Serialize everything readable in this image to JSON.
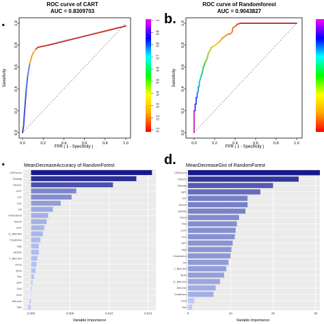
{
  "panels": [
    {
      "id": "a",
      "letter": ".",
      "title": "ROC curve of CART",
      "subtitle": "AUC = 0.8309703",
      "xlabel": "FPR ( 1 - Specificity )",
      "ylabel": "Sensitivity",
      "xticks": [
        "0.0",
        "0.2",
        "0.4",
        "0.6",
        "0.8",
        "1.0"
      ],
      "yticks": [
        "0.0",
        "0.2",
        "0.4",
        "0.6",
        "0.8",
        "1.0"
      ],
      "colorbar_ticks": [
        "0.1",
        "0.2",
        "0.3",
        "0.4",
        "0.5",
        "0.6",
        "0.7",
        "0.8",
        "0.9",
        "1"
      ]
    },
    {
      "id": "b",
      "letter": "b.",
      "title": "ROC curve of Randomforest",
      "subtitle": "AUC = 0.9043827",
      "xlabel": "FPR ( 1 - Specificity )",
      "ylabel": "Sensitivity",
      "xticks": [
        "0.0",
        "0.2",
        "0.4",
        "0.6",
        "0.8",
        "1.0"
      ],
      "yticks": [
        "0.0",
        "0.2",
        "0.4",
        "0.6",
        "0.8",
        "1.0"
      ],
      "colorbar_ticks": []
    },
    {
      "id": "c",
      "letter": ".",
      "title": "MeanDecreaseAccuracy of RandomForest",
      "xlabel": "Variable Importance",
      "xticks": [
        "0.000",
        "0.005",
        "0.010",
        "0.015"
      ]
    },
    {
      "id": "d",
      "letter": "d.",
      "title": "MeanDecreaseGini of RandomForest",
      "xlabel": "Variable Importance",
      "xticks": [
        "0",
        "10",
        "20",
        "30"
      ]
    }
  ],
  "chart_data": [
    {
      "type": "line",
      "title": "ROC curve of CART",
      "subtitle": "AUC = 0.8309703",
      "xlabel": "FPR ( 1 - Specificity )",
      "ylabel": "Sensitivity",
      "xlim": [
        0,
        1
      ],
      "ylim": [
        0,
        1
      ],
      "x": [
        0,
        0.01,
        0.02,
        0.035,
        0.05,
        0.07,
        0.09,
        0.11,
        0.13,
        0.15,
        0.25,
        0.4,
        0.55,
        0.7,
        0.85,
        1.0
      ],
      "y": [
        0,
        0.06,
        0.2,
        0.38,
        0.52,
        0.63,
        0.7,
        0.74,
        0.765,
        0.78,
        0.8,
        0.835,
        0.87,
        0.905,
        0.94,
        0.975
      ],
      "colors": [
        "#3344cc",
        "#3355dd",
        "#3b59d6",
        "#4a6fe0",
        "#5a86e8",
        "#f0a030",
        "#f2a030",
        "#e8c040",
        "#c8503a",
        "#c83a30",
        "#c23a30",
        "#c03a30",
        "#c03a30",
        "#c03a30",
        "#c03a30",
        "#c03a30"
      ],
      "diagonal_reference": true,
      "colorbar_ticks": [
        "0.1",
        "0.2",
        "0.3",
        "0.4",
        "0.5",
        "0.6",
        "0.7",
        "0.8",
        "0.9",
        "1"
      ]
    },
    {
      "type": "line",
      "title": "ROC curve of Randomforest",
      "subtitle": "AUC = 0.9043827",
      "xlabel": "FPR ( 1 - Specificity )",
      "ylabel": "Sensitivity",
      "xlim": [
        0,
        1
      ],
      "ylim": [
        0,
        1
      ],
      "x": [
        0,
        0.0,
        0.01,
        0.01,
        0.02,
        0.02,
        0.03,
        0.03,
        0.04,
        0.04,
        0.05,
        0.05,
        0.06,
        0.07,
        0.08,
        0.09,
        0.1,
        0.11,
        0.12,
        0.13,
        0.14,
        0.15,
        0.17,
        0.19,
        0.21,
        0.23,
        0.25,
        0.27,
        0.3,
        0.33,
        0.35,
        0.37,
        0.38,
        0.4,
        0.42,
        0.45,
        1.0
      ],
      "y": [
        0,
        0.2,
        0.2,
        0.26,
        0.26,
        0.32,
        0.32,
        0.36,
        0.38,
        0.42,
        0.42,
        0.46,
        0.49,
        0.52,
        0.55,
        0.6,
        0.62,
        0.65,
        0.66,
        0.69,
        0.73,
        0.74,
        0.78,
        0.79,
        0.8,
        0.82,
        0.83,
        0.86,
        0.88,
        0.9,
        0.9,
        0.92,
        0.96,
        0.97,
        0.99,
        1.0,
        1.0
      ],
      "colors": [
        "#cc33cc",
        "#9933cc",
        "#6633dd",
        "#4444ee",
        "#3355ee",
        "#3366ee",
        "#3377ee",
        "#2288ee",
        "#2299dd",
        "#22aadd",
        "#22bbcc",
        "#22cccc",
        "#22ccaa",
        "#22cc88",
        "#22cc66",
        "#33cc44",
        "#55cc33",
        "#77cc33",
        "#88cc33",
        "#99cc33",
        "#aacc33",
        "#bbcc33",
        "#cccc33",
        "#ddcc33",
        "#eecc33",
        "#eebb33",
        "#eeaa33",
        "#ee9933",
        "#ee9933",
        "#ee8833",
        "#ee8833",
        "#ee7733",
        "#ee7733",
        "#ee6633",
        "#dd4433",
        "#cc3333",
        "#cc3333"
      ],
      "diagonal_reference": true
    },
    {
      "type": "bar",
      "orientation": "horizontal",
      "title": "MeanDecreaseAccuracy of RandomForest",
      "xlabel": "Variable Importance",
      "xlim": [
        -0.001,
        0.016
      ],
      "xticks": [
        0,
        0.005,
        0.01,
        0.015
      ],
      "categories": [
        "CAPscore",
        "Obesity",
        "HbA1C",
        "GPT",
        "IGT",
        "LDL",
        "UA",
        "Cholesterol",
        "Ewore",
        "GOT",
        "D_Bilirubin",
        "Creatinine",
        "Age",
        "MORD",
        "T_Bilirubin",
        "ALKp",
        "BUN",
        "Sex",
        "AFP",
        "TSH",
        "CKD",
        "Albumin",
        "TBH"
      ],
      "values": [
        0.0155,
        0.0135,
        0.0105,
        0.0058,
        0.0052,
        0.0038,
        0.0028,
        0.0022,
        0.002,
        0.0017,
        0.0015,
        0.0012,
        0.001,
        0.001,
        0.0008,
        0.0007,
        0.0006,
        0.0004,
        0.0002,
        0.0001,
        0.0,
        -0.0002,
        -0.0004
      ]
    },
    {
      "type": "bar",
      "orientation": "horizontal",
      "title": "MeanDecreaseGini of RandomForest",
      "xlabel": "Variable Importance",
      "xlim": [
        0,
        31
      ],
      "xticks": [
        0,
        10,
        20,
        30
      ],
      "categories": [
        "CAPscore",
        "HbA1C",
        "Obesity",
        "GPT",
        "IGT",
        "Ewore",
        "MORD",
        "ALKp",
        "TSH",
        "GOT",
        "LDL",
        "AFP",
        "Age",
        "Cholesterol",
        "UA",
        "T_Bilirubin",
        "BUN",
        "D_Bilirubin",
        "Albumin",
        "Creatinine",
        "CKD",
        "Sex"
      ],
      "values": [
        31.0,
        26.0,
        20.0,
        17.0,
        14.0,
        14.0,
        13.5,
        12.0,
        11.5,
        11.2,
        11.0,
        10.5,
        10.2,
        10.0,
        9.5,
        9.0,
        8.5,
        7.5,
        6.5,
        6.0,
        1.5,
        1.0
      ]
    }
  ]
}
